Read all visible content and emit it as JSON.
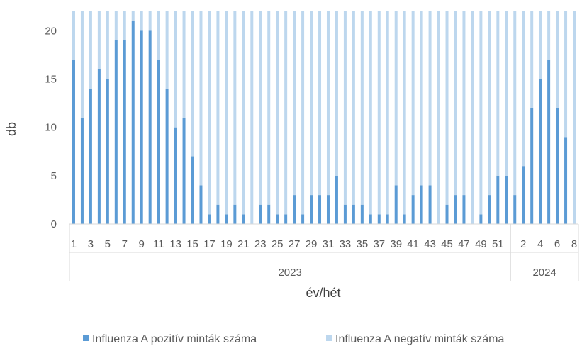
{
  "chart_data": {
    "type": "bar",
    "stacked": true,
    "xlabel": "év/hét",
    "ylabel": "db",
    "ylim": [
      0,
      22
    ],
    "yticks": [
      0,
      5,
      10,
      15,
      20
    ],
    "grid": false,
    "legend_position": "bottom",
    "colors": {
      "positive": "#5B9BD5",
      "negative": "#BDD7EE",
      "axis": "#D9D9D9",
      "text": "#595959"
    },
    "years": [
      {
        "label": "2023",
        "weeks": 52
      },
      {
        "label": "2024",
        "weeks": 8
      }
    ],
    "categories": [
      "2023-1",
      "2023-2",
      "2023-3",
      "2023-4",
      "2023-5",
      "2023-6",
      "2023-7",
      "2023-8",
      "2023-9",
      "2023-10",
      "2023-11",
      "2023-12",
      "2023-13",
      "2023-14",
      "2023-15",
      "2023-16",
      "2023-17",
      "2023-18",
      "2023-19",
      "2023-20",
      "2023-21",
      "2023-22",
      "2023-23",
      "2023-24",
      "2023-25",
      "2023-26",
      "2023-27",
      "2023-28",
      "2023-29",
      "2023-30",
      "2023-31",
      "2023-32",
      "2023-33",
      "2023-34",
      "2023-35",
      "2023-36",
      "2023-37",
      "2023-38",
      "2023-39",
      "2023-40",
      "2023-41",
      "2023-42",
      "2023-43",
      "2023-44",
      "2023-45",
      "2023-46",
      "2023-47",
      "2023-48",
      "2023-49",
      "2023-50",
      "2023-51",
      "2023-52",
      "2024-1",
      "2024-2",
      "2024-3",
      "2024-4",
      "2024-5",
      "2024-6",
      "2024-7",
      "2024-8"
    ],
    "tick_labels": [
      "1",
      "",
      "3",
      "",
      "5",
      "",
      "7",
      "",
      "9",
      "",
      "11",
      "",
      "13",
      "",
      "15",
      "",
      "17",
      "",
      "19",
      "",
      "21",
      "",
      "23",
      "",
      "25",
      "",
      "27",
      "",
      "29",
      "",
      "31",
      "",
      "33",
      "",
      "35",
      "",
      "37",
      "",
      "39",
      "",
      "41",
      "",
      "43",
      "",
      "45",
      "",
      "47",
      "",
      "49",
      "",
      "51",
      "",
      "",
      "2",
      "",
      "4",
      "",
      "6",
      "",
      "8"
    ],
    "series": [
      {
        "name": "Influenza A pozitív minták száma",
        "values": [
          17,
          11,
          14,
          16,
          15,
          19,
          19,
          21,
          20,
          20,
          17,
          14,
          10,
          11,
          7,
          4,
          1,
          2,
          1,
          2,
          1,
          0,
          2,
          2,
          1,
          1,
          3,
          1,
          3,
          3,
          3,
          5,
          2,
          2,
          2,
          1,
          1,
          1,
          4,
          1,
          3,
          4,
          4,
          0,
          2,
          3,
          3,
          0,
          1,
          3,
          5,
          5,
          3,
          6,
          12,
          15,
          17,
          12,
          9,
          0
        ]
      },
      {
        "name": "Influenza A negatív minták száma",
        "values": [
          5,
          11,
          8,
          6,
          7,
          3,
          3,
          1,
          2,
          2,
          5,
          8,
          12,
          11,
          15,
          18,
          21,
          20,
          21,
          20,
          21,
          22,
          20,
          20,
          21,
          21,
          19,
          21,
          19,
          19,
          19,
          17,
          20,
          20,
          20,
          21,
          21,
          21,
          18,
          21,
          19,
          18,
          18,
          22,
          20,
          19,
          19,
          22,
          21,
          19,
          17,
          17,
          19,
          16,
          10,
          7,
          5,
          10,
          13,
          22
        ]
      }
    ]
  }
}
